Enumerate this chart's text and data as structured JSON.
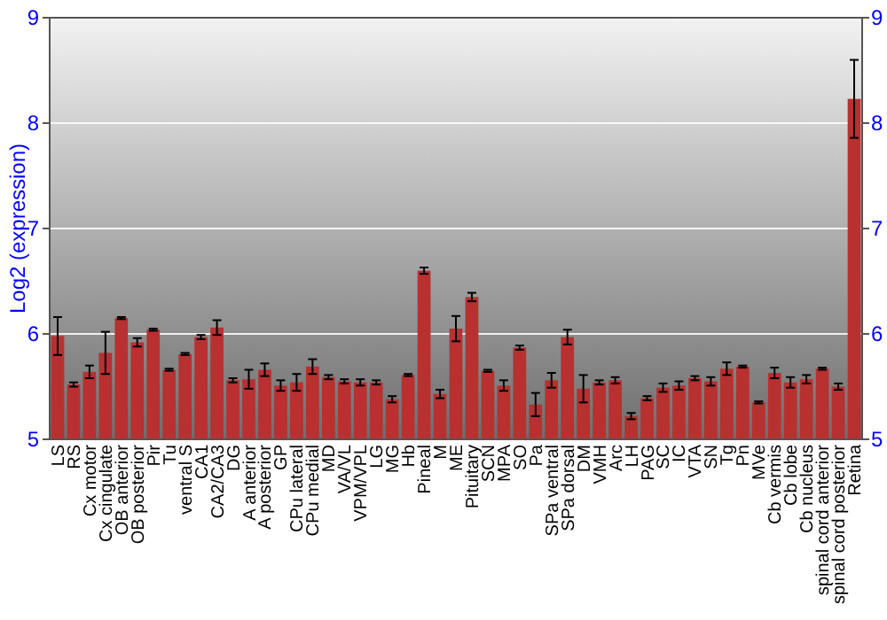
{
  "chart_data": {
    "type": "bar",
    "ylabel": "Log2 (expression)",
    "categories": [
      "LS",
      "RS",
      "Cx motor",
      "Cx cingulate",
      "OB anterior",
      "OB posterior",
      "Pir",
      "Tu",
      "ventral S",
      "CA1",
      "CA2/CA3",
      "DG",
      "A anterior",
      "A posterior",
      "GP",
      "CPu lateral",
      "CPu medial",
      "MD",
      "VA/VL",
      "VPM/VPL",
      "LG",
      "MG",
      "Hb",
      "Pineal",
      "M",
      "ME",
      "Pituitary",
      "SCN",
      "MPA",
      "SO",
      "Pa",
      "SPa ventral",
      "SPa dorsal",
      "DM",
      "VMH",
      "Arc",
      "LH",
      "PAG",
      "SC",
      "IC",
      "VTA",
      "SN",
      "Tg",
      "Pn",
      "MVe",
      "Cb vermis",
      "Cb lobe",
      "Cb nucleus",
      "spinal cord anterior",
      "spinal cord posterior",
      "Retina"
    ],
    "values": [
      5.98,
      5.52,
      5.64,
      5.82,
      6.15,
      5.92,
      6.04,
      5.66,
      5.81,
      5.97,
      6.06,
      5.56,
      5.57,
      5.66,
      5.51,
      5.54,
      5.69,
      5.59,
      5.55,
      5.54,
      5.54,
      5.38,
      5.61,
      6.6,
      5.43,
      6.05,
      6.35,
      5.65,
      5.51,
      5.87,
      5.33,
      5.56,
      5.97,
      5.48,
      5.54,
      5.56,
      5.22,
      5.39,
      5.49,
      5.51,
      5.58,
      5.55,
      5.67,
      5.69,
      5.35,
      5.63,
      5.54,
      5.57,
      5.67,
      5.5,
      8.23
    ],
    "errors": [
      0.18,
      0.02,
      0.06,
      0.2,
      0.01,
      0.04,
      0.01,
      0.01,
      0.01,
      0.02,
      0.07,
      0.02,
      0.09,
      0.06,
      0.05,
      0.08,
      0.07,
      0.02,
      0.02,
      0.03,
      0.02,
      0.03,
      0.01,
      0.03,
      0.04,
      0.12,
      0.04,
      0.01,
      0.05,
      0.02,
      0.11,
      0.07,
      0.07,
      0.13,
      0.02,
      0.03,
      0.03,
      0.02,
      0.04,
      0.04,
      0.02,
      0.04,
      0.06,
      0.01,
      0.01,
      0.05,
      0.05,
      0.04,
      0.01,
      0.03,
      0.37
    ],
    "color": "#b83030",
    "ylim": [
      5,
      9
    ],
    "yticks": [
      5,
      6,
      7,
      8,
      9
    ],
    "y2lim": [
      5,
      9
    ],
    "y2ticks": [
      5,
      6,
      7,
      8,
      9
    ],
    "grid": "y"
  }
}
